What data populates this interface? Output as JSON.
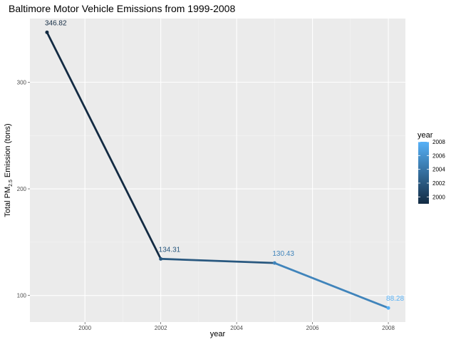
{
  "chart_data": {
    "type": "line",
    "title": "Baltimore Motor Vehicle Emissions from 1999-2008",
    "xlabel": "year",
    "ylabel": {
      "prefix": "Total PM",
      "subscript": "2.5",
      "suffix": " Emission (tons)"
    },
    "x": [
      1999,
      2002,
      2005,
      2008
    ],
    "y": [
      346.82,
      134.31,
      130.43,
      88.28
    ],
    "data_labels": [
      "346.82",
      "134.31",
      "130.43",
      "88.28"
    ],
    "xlim": [
      1998.55,
      2008.45
    ],
    "ylim": [
      75.06,
      359.73
    ],
    "xticks": [
      2000,
      2002,
      2004,
      2006,
      2008
    ],
    "yticks": [
      100,
      200,
      300
    ],
    "grid": true,
    "color_scale": {
      "title": "year",
      "low_year": 1999,
      "high_year": 2008,
      "low_color": "#132B43",
      "high_color": "#56B1F7",
      "ticks": [
        2000,
        2002,
        2004,
        2006,
        2008
      ]
    },
    "legend_position": "right"
  }
}
